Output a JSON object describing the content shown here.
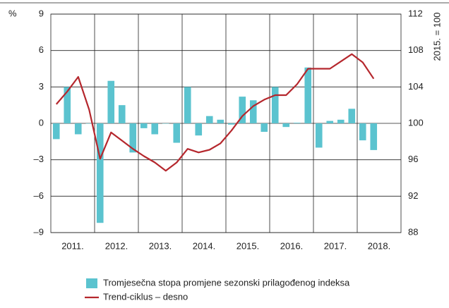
{
  "chart_data": {
    "type": "bar+line",
    "y_label": "%",
    "y2_label": "2015. = 100",
    "x": [
      2011.125,
      2011.375,
      2011.625,
      2011.875,
      2012.125,
      2012.375,
      2012.625,
      2012.875,
      2013.125,
      2013.375,
      2013.625,
      2013.875,
      2014.125,
      2014.375,
      2014.625,
      2014.875,
      2015.125,
      2015.375,
      2015.625,
      2015.875,
      2016.125,
      2016.375,
      2016.625,
      2016.875,
      2017.125,
      2017.375,
      2017.625,
      2017.875,
      2018.125,
      2018.375
    ],
    "xlim": [
      2011,
      2019
    ],
    "xticks": [
      {
        "value": 2011.5,
        "label": "2011."
      },
      {
        "value": 2012.5,
        "label": "2012."
      },
      {
        "value": 2013.5,
        "label": "2013."
      },
      {
        "value": 2014.5,
        "label": "2014."
      },
      {
        "value": 2015.5,
        "label": "2015."
      },
      {
        "value": 2016.5,
        "label": "2016."
      },
      {
        "value": 2017.5,
        "label": "2017."
      },
      {
        "value": 2018.5,
        "label": "2018."
      }
    ],
    "xgrid": [
      2012,
      2013,
      2014,
      2015,
      2016,
      2017,
      2018
    ],
    "ylim": [
      -9,
      9
    ],
    "yticks": [
      {
        "value": -9,
        "label": "–9"
      },
      {
        "value": -6,
        "label": "–6"
      },
      {
        "value": -3,
        "label": "–3"
      },
      0,
      3,
      6,
      9
    ],
    "y2lim": [
      88,
      112
    ],
    "y2ticks": [
      88,
      92,
      96,
      100,
      104,
      108,
      112
    ],
    "grid": true,
    "series": [
      {
        "name": "Tromjesečna stopa promjene sezonski prilagođenog indeksa",
        "type": "bar",
        "color": "#5bc3cf",
        "values": [
          -1.3,
          3.0,
          -0.9,
          0,
          -8.2,
          3.5,
          1.5,
          -2.4,
          -0.4,
          -0.9,
          0,
          -1.6,
          3.0,
          -1.0,
          0.6,
          0.3,
          -0.1,
          2.2,
          1.9,
          -0.7,
          3.0,
          -0.3,
          0.05,
          4.6,
          -2.0,
          0.2,
          0.3,
          1.2,
          -1.4,
          -2.2
        ]
      },
      {
        "name": "Trend-ciklus – desno",
        "type": "line",
        "axis": "y2",
        "color": "#b5272d",
        "values": [
          102.1,
          103.5,
          105.1,
          101.5,
          96.1,
          99.0,
          98.1,
          97.2,
          96.4,
          95.7,
          94.8,
          95.7,
          97.2,
          96.8,
          97.1,
          97.8,
          99.2,
          100.8,
          101.9,
          102.6,
          103.1,
          103.1,
          104.3,
          106.0,
          106.0,
          106.0,
          106.8,
          107.6,
          106.7,
          104.9
        ]
      }
    ]
  }
}
